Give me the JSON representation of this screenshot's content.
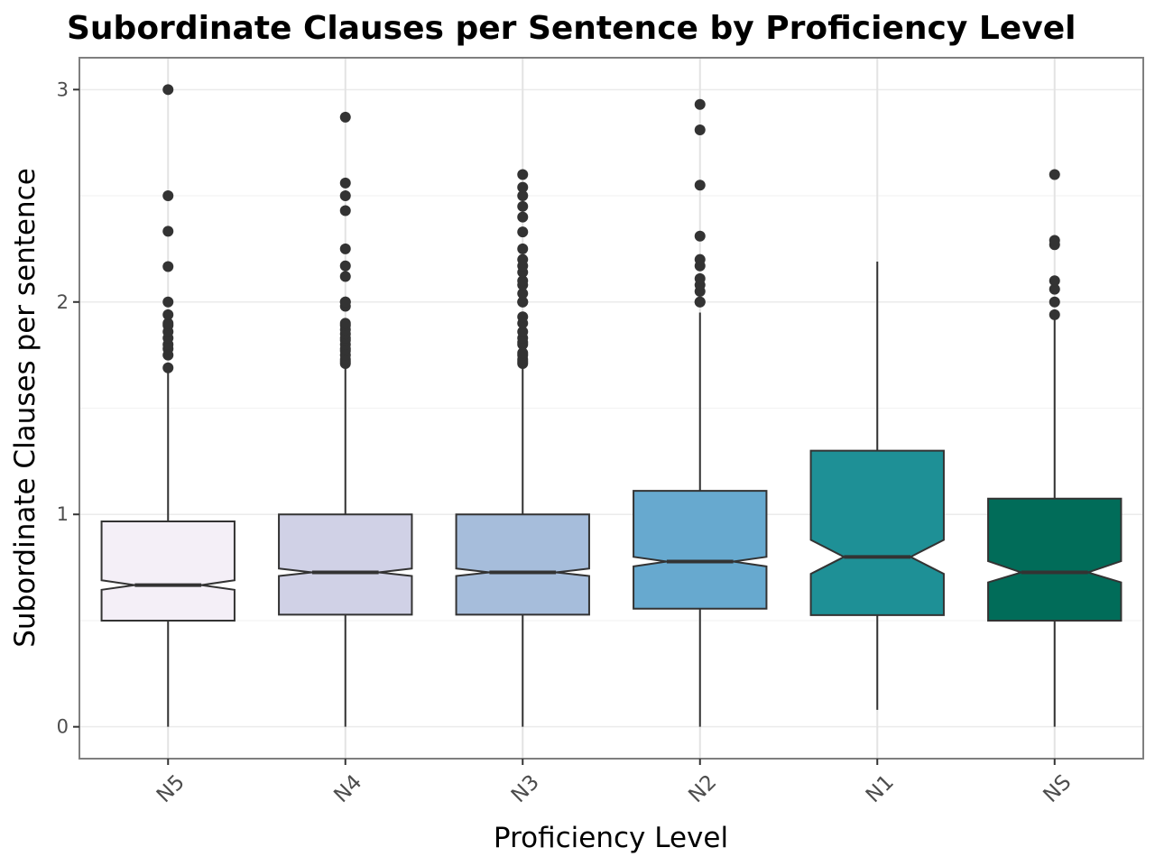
{
  "chart_data": {
    "type": "boxplot",
    "title": "Subordinate Clauses per Sentence by Proficiency Level",
    "xlabel": "Proficiency Level",
    "ylabel": "Subordinate Clauses per sentence",
    "ylim": [
      -0.15,
      3.15
    ],
    "yticks": [
      0,
      1,
      2,
      3
    ],
    "notched": true,
    "grid": true,
    "categories": [
      "N5",
      "N4",
      "N3",
      "N2",
      "N1",
      "NS"
    ],
    "series": [
      {
        "name": "N5",
        "color": "#f4eff7",
        "whisker_low": 0,
        "q1": 0.5,
        "median": 0.667,
        "q3": 0.967,
        "whisker_high": 1.69,
        "notch_low": 0.645,
        "notch_high": 0.69,
        "outliers": [
          1.69,
          1.75,
          1.78,
          1.8,
          1.83,
          1.86,
          1.89,
          1.9,
          1.94,
          2.0,
          2.167,
          2.333,
          2.5,
          3.0
        ]
      },
      {
        "name": "N4",
        "color": "#d0d1e6",
        "whisker_low": 0,
        "q1": 0.528,
        "median": 0.727,
        "q3": 1.0,
        "whisker_high": 1.7,
        "notch_low": 0.71,
        "notch_high": 0.745,
        "outliers": [
          1.71,
          1.72,
          1.73,
          1.75,
          1.77,
          1.78,
          1.8,
          1.82,
          1.83,
          1.85,
          1.87,
          1.89,
          1.9,
          1.98,
          2.0,
          2.0,
          2.12,
          2.17,
          2.25,
          2.43,
          2.5,
          2.56,
          2.87
        ]
      },
      {
        "name": "N3",
        "color": "#a6bddb",
        "whisker_low": 0,
        "q1": 0.528,
        "median": 0.727,
        "q3": 1.0,
        "whisker_high": 1.7,
        "notch_low": 0.71,
        "notch_high": 0.745,
        "outliers": [
          1.71,
          1.72,
          1.73,
          1.75,
          1.76,
          1.8,
          1.81,
          1.83,
          1.86,
          1.9,
          1.93,
          2.0,
          2.0,
          2.04,
          2.08,
          2.1,
          2.14,
          2.17,
          2.2,
          2.25,
          2.33,
          2.4,
          2.45,
          2.5,
          2.54,
          2.6
        ]
      },
      {
        "name": "N2",
        "color": "#67a9cf",
        "whisker_low": 0,
        "q1": 0.556,
        "median": 0.778,
        "q3": 1.111,
        "whisker_high": 1.95,
        "notch_low": 0.755,
        "notch_high": 0.8,
        "outliers": [
          2.0,
          2.0,
          2.05,
          2.08,
          2.11,
          2.17,
          2.2,
          2.31,
          2.55,
          2.81,
          2.93
        ]
      },
      {
        "name": "N1",
        "color": "#1e9096",
        "whisker_low": 0.08,
        "q1": 0.526,
        "median": 0.8,
        "q3": 1.3,
        "whisker_high": 2.19,
        "notch_low": 0.72,
        "notch_high": 0.88,
        "outliers": []
      },
      {
        "name": "NS",
        "color": "#016c59",
        "whisker_low": 0,
        "q1": 0.5,
        "median": 0.727,
        "q3": 1.074,
        "whisker_high": 1.93,
        "notch_low": 0.68,
        "notch_high": 0.78,
        "outliers": [
          1.94,
          2.0,
          2.06,
          2.1,
          2.27,
          2.29,
          2.6
        ]
      }
    ]
  }
}
